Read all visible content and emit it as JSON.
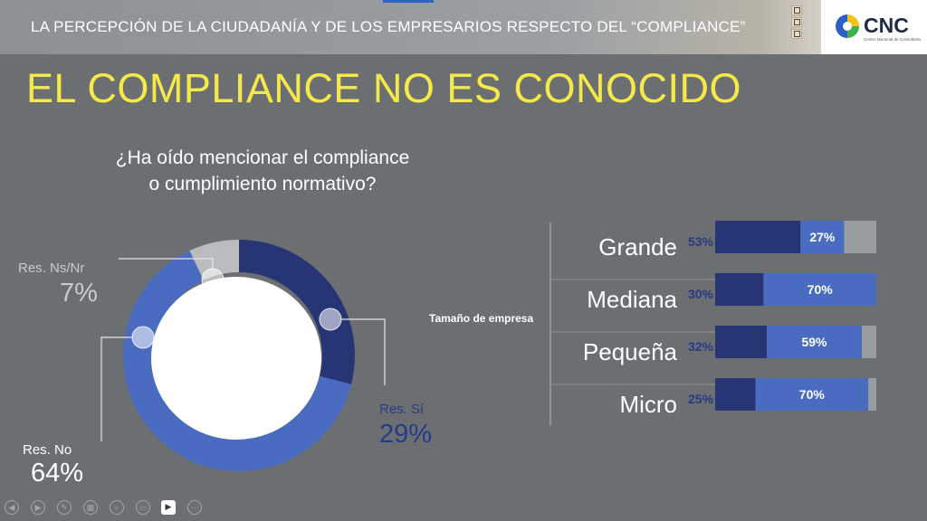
{
  "header": {
    "title": "LA PERCEPCIÓN DE LA CIUDADANÍA Y DE LOS EMPRESARIOS RESPECTO DEL “COMPLIANCE”",
    "logo_text": "CNC",
    "logo_subtitle": "Centro Nacional de Consultoría"
  },
  "slide": {
    "title": "EL COMPLIANCE NO ES CONOCIDO",
    "question_line1": "¿Ha oído mencionar el compliance",
    "question_line2": "o cumplimiento normativo?"
  },
  "colors": {
    "background": "#6b6f72",
    "title": "#f5e94a",
    "dark_navy": "#283575",
    "mid_blue": "#4a6cc0",
    "light_gray": "#b9bcbe"
  },
  "chart_data": [
    {
      "type": "pie",
      "title": "",
      "labels": [
        "Res. Sí",
        "Res. No",
        "Res. Ns/Nr"
      ],
      "values": [
        29,
        64,
        7
      ],
      "value_labels": [
        "29%",
        "64%",
        "7%"
      ],
      "colors": [
        "#283575",
        "#4a6cc0",
        "#b9bcbe"
      ],
      "style": "donut"
    },
    {
      "type": "bar",
      "orientation": "horizontal",
      "stacked": true,
      "ylabel": "Tamaño de empresa",
      "categories": [
        "Grande",
        "Mediana",
        "Pequeña",
        "Micro"
      ],
      "series": [
        {
          "values": [
            53,
            30,
            32,
            25
          ],
          "labels": [
            "53%",
            "30%",
            "32%",
            "25%"
          ],
          "color": "#283575"
        },
        {
          "values": [
            27,
            70,
            59,
            70
          ],
          "labels": [
            "27%",
            "70%",
            "59%",
            "70%"
          ],
          "color": "#4a6cc0"
        },
        {
          "values": [
            20,
            0,
            9,
            5
          ],
          "color": "#9a9d9f"
        }
      ],
      "xlim": [
        0,
        100
      ]
    }
  ],
  "controls": [
    {
      "icon": "prev-icon",
      "glyph": "◀"
    },
    {
      "icon": "next-icon",
      "glyph": "▶"
    },
    {
      "icon": "pen-icon",
      "glyph": "✎"
    },
    {
      "icon": "slides-icon",
      "glyph": "▦"
    },
    {
      "icon": "zoom-icon",
      "glyph": "⌕"
    },
    {
      "icon": "subtitles-icon",
      "glyph": "▭"
    },
    {
      "icon": "camera-icon",
      "glyph": "▶"
    },
    {
      "icon": "more-icon",
      "glyph": "⋯"
    }
  ]
}
